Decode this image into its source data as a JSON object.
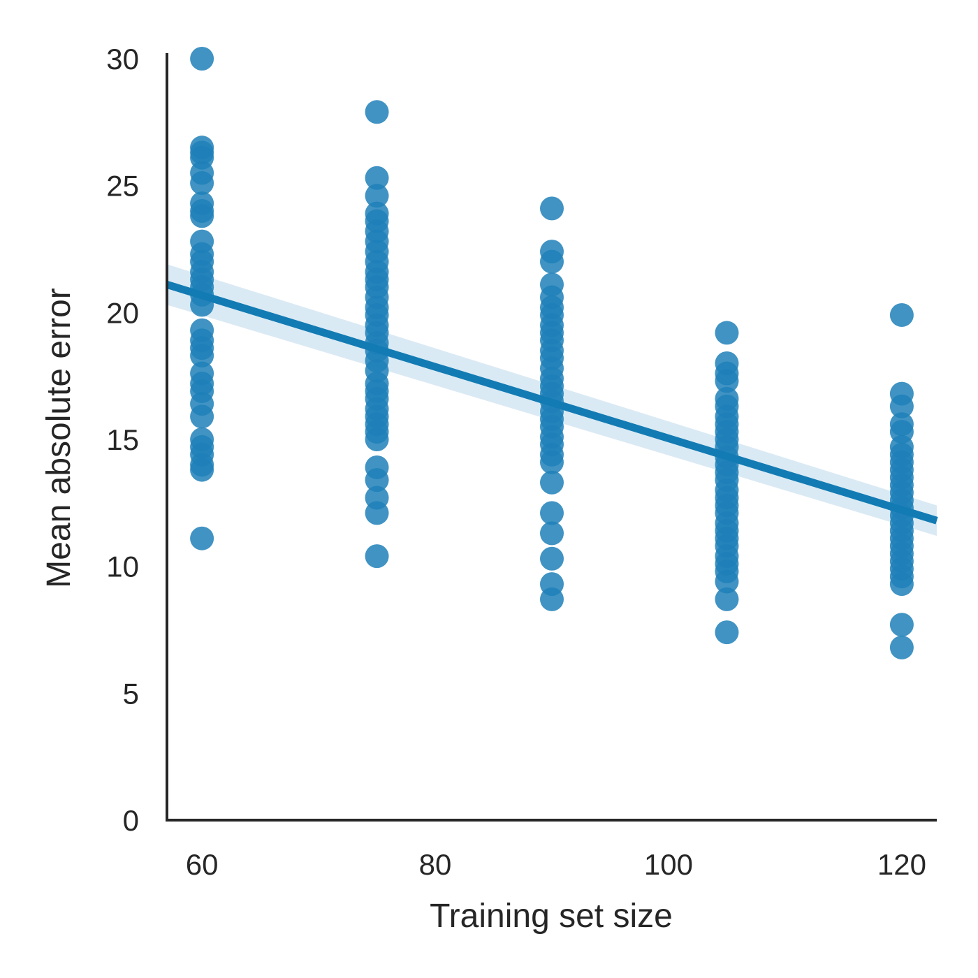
{
  "chart_data": {
    "type": "scatter",
    "xlabel": "Training set size",
    "ylabel": "Mean absolute error",
    "xlim": [
      57,
      123
    ],
    "ylim": [
      0,
      30
    ],
    "xticks": [
      60,
      80,
      100,
      120
    ],
    "yticks": [
      0,
      5,
      10,
      15,
      20,
      25,
      30
    ],
    "grid": false,
    "colors": {
      "points": "#1f80b8",
      "line": "#137bb3",
      "band": "#d3e6f2",
      "axis": "#262626"
    },
    "series": [
      {
        "x": 60,
        "y": [
          30.0,
          26.5,
          26.3,
          26.1,
          25.5,
          25.1,
          24.3,
          24.0,
          23.8,
          22.8,
          22.3,
          22.0,
          21.6,
          21.3,
          21.0,
          20.7,
          20.3,
          19.3,
          18.9,
          18.6,
          18.3,
          17.6,
          17.2,
          16.9,
          16.4,
          15.9,
          15.0,
          14.7,
          14.4,
          14.0,
          13.8,
          11.1
        ]
      },
      {
        "x": 75,
        "y": [
          27.9,
          25.3,
          24.6,
          23.9,
          23.6,
          23.2,
          22.8,
          22.4,
          22.0,
          21.6,
          21.3,
          21.0,
          20.6,
          20.2,
          19.9,
          19.5,
          19.2,
          18.8,
          18.5,
          18.1,
          17.7,
          17.2,
          16.9,
          16.6,
          16.2,
          15.9,
          15.6,
          15.3,
          15.0,
          13.9,
          13.4,
          12.7,
          12.1,
          10.4
        ]
      },
      {
        "x": 90,
        "y": [
          24.1,
          22.4,
          22.0,
          21.1,
          20.6,
          20.2,
          19.9,
          19.5,
          19.2,
          18.9,
          18.5,
          18.2,
          17.8,
          17.4,
          17.1,
          16.8,
          16.5,
          16.1,
          15.8,
          15.5,
          15.1,
          14.8,
          14.4,
          14.1,
          13.3,
          12.1,
          11.3,
          10.3,
          9.3,
          8.7
        ]
      },
      {
        "x": 105,
        "y": [
          19.2,
          18.0,
          17.6,
          17.3,
          16.6,
          16.3,
          15.9,
          15.6,
          15.3,
          15.0,
          14.7,
          14.3,
          14.0,
          13.7,
          13.4,
          13.0,
          12.7,
          12.4,
          12.1,
          11.7,
          11.4,
          11.1,
          10.8,
          10.4,
          10.1,
          9.8,
          9.4,
          8.7,
          7.4
        ]
      },
      {
        "x": 120,
        "y": [
          19.9,
          16.8,
          16.3,
          15.6,
          15.3,
          14.7,
          14.4,
          14.1,
          13.8,
          13.5,
          13.2,
          12.9,
          12.6,
          12.3,
          12.0,
          11.7,
          11.4,
          11.1,
          10.8,
          10.5,
          10.2,
          9.9,
          9.6,
          9.3,
          7.7,
          6.8
        ]
      }
    ],
    "regression": {
      "x": [
        57,
        123
      ],
      "y": [
        21.1,
        11.8
      ],
      "ci_lower": [
        20.3,
        11.2
      ],
      "ci_upper": [
        21.9,
        12.4
      ]
    }
  }
}
